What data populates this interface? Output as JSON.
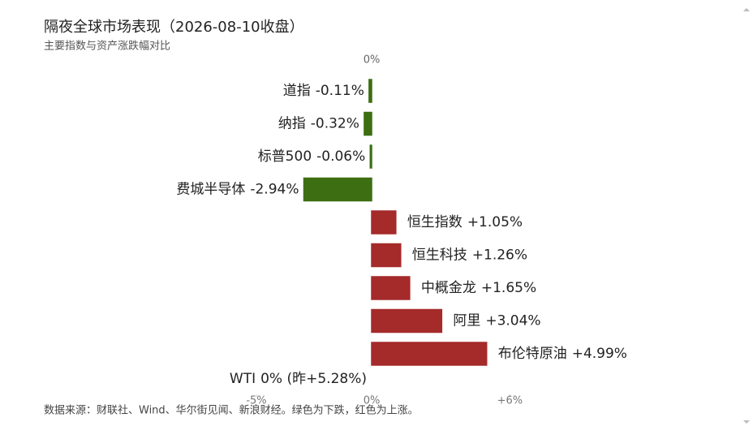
{
  "chart_data": {
    "type": "bar",
    "orientation": "horizontal",
    "title": "隔夜全球市场表现（2026-08-10收盘）",
    "subtitle": "主要指数与资产涨跌幅对比",
    "categories": [
      "道指",
      "纳指",
      "标普500",
      "费城半导体",
      "恒生指数",
      "恒生科技",
      "中概金龙",
      "阿里",
      "布伦特原油",
      "WTI"
    ],
    "values": [
      -0.11,
      -0.32,
      -0.06,
      -2.94,
      1.05,
      1.26,
      1.65,
      3.04,
      4.99,
      0
    ],
    "value_labels": [
      "-0.11%",
      "-0.32%",
      "-0.06%",
      "-2.94%",
      "+1.05%",
      "+1.26%",
      "+1.65%",
      "+3.04%",
      "+4.99%",
      "0% (昨+5.28%)"
    ],
    "negative_color": "#3d6e12",
    "positive_color": "#a52a2a",
    "xlim": [
      -5,
      6
    ],
    "xticks": [
      {
        "value": -5,
        "label": "-5%"
      },
      {
        "value": 0,
        "label": "0%"
      },
      {
        "value": 6,
        "label": "+6%"
      }
    ],
    "note": "数据来源：财联社、Wind、华尔街见闻、新浪财经。绿色为下跌，红色为上涨。"
  }
}
